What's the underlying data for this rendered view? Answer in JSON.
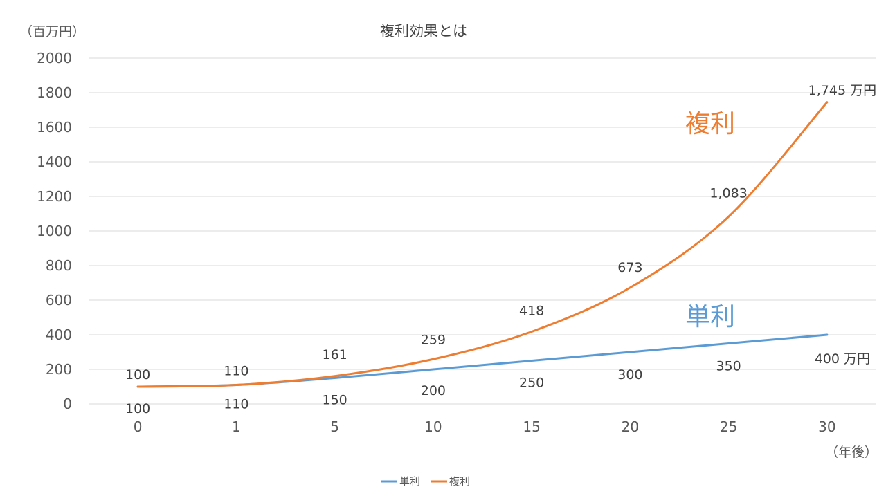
{
  "chart_data": {
    "type": "line",
    "title": "複利効果とは",
    "ylabel": "（百万円）",
    "xlabel": "（年後）",
    "ylim": [
      0,
      2000
    ],
    "yticks": [
      0,
      200,
      400,
      600,
      800,
      1000,
      1200,
      1400,
      1600,
      1800,
      2000
    ],
    "grid": true,
    "legend_position": "bottom",
    "categories": [
      "0",
      "1",
      "5",
      "10",
      "15",
      "20",
      "25",
      "30"
    ],
    "series": [
      {
        "name": "単利",
        "color": "#5B9BD5",
        "values": [
          100,
          110,
          150,
          200,
          250,
          300,
          350,
          400
        ],
        "labels": [
          "100",
          "110",
          "150",
          "200",
          "250",
          "300",
          "350",
          "400 万円"
        ],
        "annotation": "単利"
      },
      {
        "name": "複利",
        "color": "#ED7D31",
        "values": [
          100,
          110,
          161,
          259,
          418,
          673,
          1083,
          1745
        ],
        "labels": [
          "100",
          "110",
          "161",
          "259",
          "418",
          "673",
          "1,083",
          "1,745 万円"
        ],
        "annotation": "複利"
      }
    ]
  }
}
